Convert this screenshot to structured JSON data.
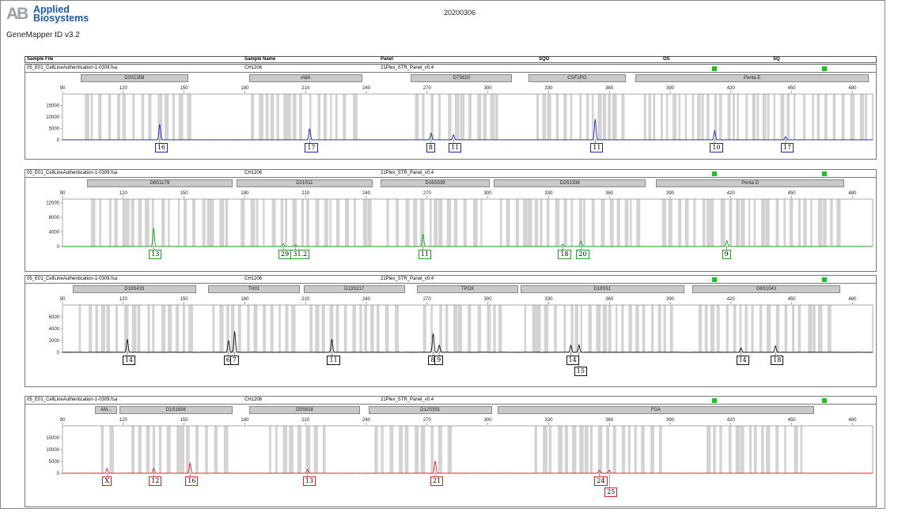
{
  "header": {
    "logo_mark": "AB",
    "brand_line1": "Applied",
    "brand_line2": "Biosystems",
    "software": "GeneMapper ID v3.2",
    "run_date": "20200306"
  },
  "table_header": {
    "sample_file": "Sample File",
    "sample_name": "Sample Name",
    "panel": "Panel",
    "sqo": "SQO",
    "os": "OS",
    "sq": "SQ"
  },
  "colors": {
    "blue": "#1f24b8",
    "green": "#19a819",
    "black": "#111111",
    "red": "#e02020",
    "bin": "#d3d3d3",
    "quality_pass": "#19c619"
  },
  "chart_data": [
    {
      "type": "line",
      "dye": "blue",
      "sample_file": "05_E01_CellLineAuthentication-1-0309.fsa",
      "sample_name": "CH1206",
      "panel": "21Plex_STR_Panel_v0.4",
      "xlim": [
        90,
        490
      ],
      "x_ticks": [
        90,
        120,
        150,
        180,
        210,
        240,
        270,
        300,
        330,
        360,
        390,
        420,
        450,
        480
      ],
      "ylim": [
        0,
        20000
      ],
      "y_ticks": [
        0,
        5000,
        10000,
        15000
      ],
      "loci": [
        {
          "name": "D3S1358",
          "range": [
            99,
            152
          ]
        },
        {
          "name": "vWA",
          "range": [
            182,
            238
          ]
        },
        {
          "name": "D7S820",
          "range": [
            262,
            312
          ]
        },
        {
          "name": "CSF1PO",
          "range": [
            320,
            368
          ]
        },
        {
          "name": "Penta E",
          "range": [
            373,
            488
          ]
        }
      ],
      "bin_ranges": [
        [
          101,
          152
        ],
        [
          183,
          238
        ],
        [
          264,
          304
        ],
        [
          324,
          366
        ],
        [
          377,
          488
        ]
      ],
      "peaks": [
        {
          "x": 138,
          "height": 6800,
          "alleles": [
            "16"
          ]
        },
        {
          "x": 212,
          "height": 5000,
          "alleles": [
            "17"
          ]
        },
        {
          "x": 272,
          "height": 2900,
          "alleles": [
            "8"
          ]
        },
        {
          "x": 283,
          "height": 2200,
          "alleles": [
            "11"
          ]
        },
        {
          "x": 353,
          "height": 9000,
          "alleles": [
            "11"
          ]
        },
        {
          "x": 412,
          "height": 4000,
          "alleles": [
            "10"
          ]
        },
        {
          "x": 447,
          "height": 1300,
          "alleles": [
            "17"
          ]
        }
      ]
    },
    {
      "type": "line",
      "dye": "green",
      "sample_file": "05_E01_CellLineAuthentication-1-0309.fsa",
      "sample_name": "CH1206",
      "panel": "21Plex_STR_Panel_v0.4",
      "xlim": [
        90,
        490
      ],
      "x_ticks": [
        90,
        120,
        150,
        180,
        210,
        240,
        270,
        300,
        330,
        360,
        390,
        420,
        450,
        480
      ],
      "ylim": [
        0,
        13000
      ],
      "y_ticks": [
        0,
        4000,
        8000,
        12000
      ],
      "loci": [
        {
          "name": "D8S1179",
          "range": [
            102,
            174
          ]
        },
        {
          "name": "D21S11",
          "range": [
            176,
            243
          ]
        },
        {
          "name": "D16S539",
          "range": [
            247,
            301
          ]
        },
        {
          "name": "D2S1338",
          "range": [
            303,
            378
          ]
        },
        {
          "name": "Penta D",
          "range": [
            383,
            476
          ]
        }
      ],
      "bin_ranges": [
        [
          104,
          172
        ],
        [
          178,
          243
        ],
        [
          250,
          299
        ],
        [
          306,
          378
        ],
        [
          386,
          476
        ]
      ],
      "peaks": [
        {
          "x": 135,
          "height": 5000,
          "alleles": [
            "13"
          ]
        },
        {
          "x": 199,
          "height": 800,
          "alleles": [
            "29"
          ]
        },
        {
          "x": 205,
          "height": 500,
          "alleles": [
            "31.2"
          ]
        },
        {
          "x": 268,
          "height": 3400,
          "alleles": [
            "11"
          ]
        },
        {
          "x": 337,
          "height": 600,
          "alleles": [
            "18"
          ]
        },
        {
          "x": 346,
          "height": 1500,
          "alleles": [
            "20"
          ]
        },
        {
          "x": 418,
          "height": 1600,
          "alleles": [
            "9"
          ]
        }
      ]
    },
    {
      "type": "line",
      "dye": "black",
      "sample_file": "05_E01_CellLineAuthentication-1-0309.fsa",
      "sample_name": "CH1206",
      "panel": "21Plex_STR_Panel_v0.4",
      "xlim": [
        90,
        490
      ],
      "x_ticks": [
        90,
        120,
        150,
        180,
        210,
        240,
        270,
        300,
        330,
        360,
        390,
        420,
        450,
        480
      ],
      "ylim": [
        0,
        8000
      ],
      "y_ticks": [
        0,
        2000,
        4000,
        6000
      ],
      "loci": [
        {
          "name": "D19S433",
          "range": [
            95,
            156
          ]
        },
        {
          "name": "TH01",
          "range": [
            162,
            207
          ]
        },
        {
          "name": "D13S317",
          "range": [
            209,
            259
          ]
        },
        {
          "name": "TPOX",
          "range": [
            265,
            315
          ]
        },
        {
          "name": "D18S51",
          "range": [
            316,
            397
          ]
        },
        {
          "name": "D6S1043",
          "range": [
            401,
            474
          ]
        }
      ],
      "bin_ranges": [
        [
          98,
          154
        ],
        [
          164,
          204
        ],
        [
          212,
          257
        ],
        [
          268,
          308
        ],
        [
          318,
          392
        ],
        [
          404,
          470
        ]
      ],
      "peaks": [
        {
          "x": 122,
          "height": 2200,
          "alleles": [
            "14"
          ]
        },
        {
          "x": 172,
          "height": 2000,
          "alleles": [
            "6"
          ]
        },
        {
          "x": 175,
          "height": 3500,
          "alleles": [
            "7"
          ]
        },
        {
          "x": 223,
          "height": 2200,
          "alleles": [
            "11"
          ]
        },
        {
          "x": 273,
          "height": 3200,
          "alleles": [
            "8"
          ]
        },
        {
          "x": 276,
          "height": 1200,
          "alleles": [
            "9"
          ]
        },
        {
          "x": 341,
          "height": 1200,
          "alleles": [
            "14"
          ]
        },
        {
          "x": 345,
          "height": 1200,
          "alleles": [
            "15"
          ]
        },
        {
          "x": 425,
          "height": 700,
          "alleles": [
            "14"
          ]
        },
        {
          "x": 442,
          "height": 1100,
          "alleles": [
            "18"
          ]
        }
      ]
    },
    {
      "type": "line",
      "dye": "red",
      "sample_file": "05_E01_CellLineAuthentication-1-0309.fsa",
      "sample_name": "CH1206",
      "panel": "21Plex_STR_Panel_v0.4",
      "xlim": [
        90,
        490
      ],
      "x_ticks": [
        90,
        120,
        150,
        180,
        210,
        240,
        270,
        300,
        330,
        360,
        390,
        420,
        450,
        480
      ],
      "ylim": [
        0,
        20000
      ],
      "y_ticks": [
        0,
        5000,
        10000,
        15000
      ],
      "loci": [
        {
          "name": "AM...",
          "range": [
            106,
            117
          ]
        },
        {
          "name": "D1S1656",
          "range": [
            118,
            174
          ]
        },
        {
          "name": "D5S818",
          "range": [
            182,
            237
          ]
        },
        {
          "name": "D12S391",
          "range": [
            241,
            302
          ]
        },
        {
          "name": "FGA",
          "range": [
            305,
            461
          ]
        }
      ],
      "bin_ranges": [
        [
          109,
          116
        ],
        [
          124,
          173
        ],
        [
          192,
          222
        ],
        [
          244,
          282
        ],
        [
          323,
          386
        ],
        [
          408,
          455
        ]
      ],
      "peaks": [
        {
          "x": 112,
          "height": 2000,
          "alleles": [
            "X"
          ]
        },
        {
          "x": 135,
          "height": 2000,
          "alleles": [
            "12"
          ]
        },
        {
          "x": 153,
          "height": 4200,
          "alleles": [
            "16"
          ]
        },
        {
          "x": 211,
          "height": 1600,
          "alleles": [
            "13"
          ]
        },
        {
          "x": 274,
          "height": 5200,
          "alleles": [
            "21"
          ]
        },
        {
          "x": 355,
          "height": 1300,
          "alleles": [
            "24"
          ]
        },
        {
          "x": 360,
          "height": 1300,
          "alleles": [
            "25"
          ]
        }
      ]
    }
  ]
}
